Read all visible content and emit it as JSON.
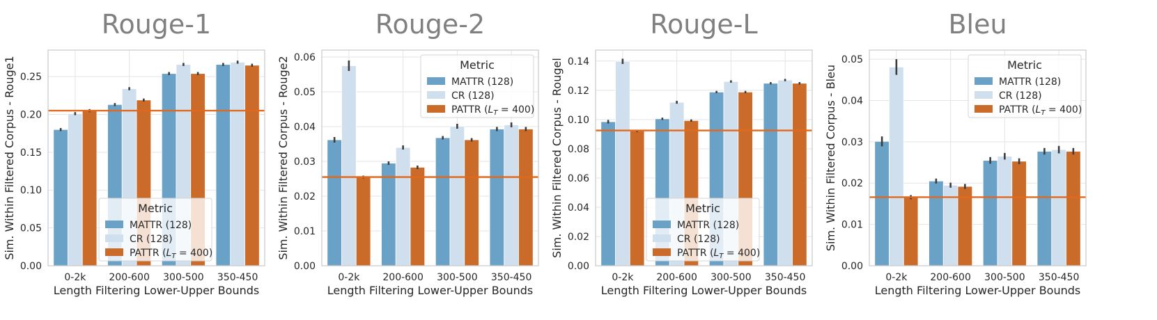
{
  "chart_data": [
    {
      "type": "bar",
      "title": "Rouge-1",
      "xlabel": "Length Filtering Lower-Upper Bounds",
      "ylabel": "Sim. Within Filtered Corpus - Rouge1",
      "categories": [
        "0-2k",
        "200-600",
        "300-500",
        "350-450"
      ],
      "ylim": [
        0,
        0.285
      ],
      "yticks": [
        "0.00",
        "0.05",
        "0.10",
        "0.15",
        "0.20",
        "0.25"
      ],
      "ytick_values": [
        0,
        0.05,
        0.1,
        0.15,
        0.2,
        0.25
      ],
      "hline": 0.205,
      "legend_position": "lower-center",
      "series": [
        {
          "name": "MATTR (128)",
          "values": [
            0.18,
            0.213,
            0.254,
            0.266
          ],
          "errors": [
            0.002,
            0.002,
            0.002,
            0.002
          ]
        },
        {
          "name": "CR (128)",
          "values": [
            0.201,
            0.234,
            0.266,
            0.269
          ],
          "errors": [
            0.002,
            0.002,
            0.002,
            0.002
          ]
        },
        {
          "name": "PATTR (L_T = 400)",
          "values": [
            0.205,
            0.219,
            0.254,
            0.265
          ],
          "errors": [
            0.002,
            0.002,
            0.002,
            0.002
          ]
        }
      ]
    },
    {
      "type": "bar",
      "title": "Rouge-2",
      "xlabel": "Length Filtering Lower-Upper Bounds",
      "ylabel": "Sim. Within Filtered Corpus - Rouge2",
      "categories": [
        "0-2k",
        "200-600",
        "300-500",
        "350-450"
      ],
      "ylim": [
        0,
        0.062
      ],
      "yticks": [
        "0.00",
        "0.01",
        "0.02",
        "0.03",
        "0.04",
        "0.05",
        "0.06"
      ],
      "ytick_values": [
        0,
        0.01,
        0.02,
        0.03,
        0.04,
        0.05,
        0.06
      ],
      "hline": 0.0255,
      "legend_position": "top-right",
      "series": [
        {
          "name": "MATTR (128)",
          "values": [
            0.0362,
            0.0295,
            0.0368,
            0.0393
          ],
          "errors": [
            0.0008,
            0.0005,
            0.0005,
            0.0006
          ]
        },
        {
          "name": "CR (128)",
          "values": [
            0.0575,
            0.034,
            0.0401,
            0.0405
          ],
          "errors": [
            0.0015,
            0.0006,
            0.0007,
            0.0007
          ]
        },
        {
          "name": "PATTR (L_T = 400)",
          "values": [
            0.0255,
            0.0283,
            0.0362,
            0.0393
          ],
          "errors": [
            0.0004,
            0.0005,
            0.0005,
            0.0006
          ]
        }
      ]
    },
    {
      "type": "bar",
      "title": "Rouge-L",
      "xlabel": "Length Filtering Lower-Upper Bounds",
      "ylabel": "Sim. Within Filtered Corpus - Rougel",
      "categories": [
        "0-2k",
        "200-600",
        "300-500",
        "350-450"
      ],
      "ylim": [
        0,
        0.1475
      ],
      "yticks": [
        "0.00",
        "0.02",
        "0.04",
        "0.06",
        "0.08",
        "0.10",
        "0.12",
        "0.14"
      ],
      "ytick_values": [
        0,
        0.02,
        0.04,
        0.06,
        0.08,
        0.1,
        0.12,
        0.14
      ],
      "hline": 0.0925,
      "legend_position": "lower-center",
      "series": [
        {
          "name": "MATTR (128)",
          "values": [
            0.0985,
            0.1005,
            0.1188,
            0.1248
          ],
          "errors": [
            0.0012,
            0.0008,
            0.0008,
            0.0008
          ]
        },
        {
          "name": "CR (128)",
          "values": [
            0.1398,
            0.1118,
            0.126,
            0.127
          ],
          "errors": [
            0.0018,
            0.001,
            0.0008,
            0.0008
          ]
        },
        {
          "name": "PATTR (L_T = 400)",
          "values": [
            0.0922,
            0.0993,
            0.1188,
            0.1248
          ],
          "errors": [
            0.0008,
            0.0008,
            0.0008,
            0.0008
          ]
        }
      ]
    },
    {
      "type": "bar",
      "title": "Bleu",
      "xlabel": "Length Filtering Lower-Upper Bounds",
      "ylabel": "Sim. Within Filtered Corpus - Bleu",
      "categories": [
        "0-2k",
        "200-600",
        "300-500",
        "350-450"
      ],
      "ylim": [
        0,
        0.0522
      ],
      "yticks": [
        "0.00",
        "0.01",
        "0.02",
        "0.03",
        "0.04",
        "0.05"
      ],
      "ytick_values": [
        0,
        0.01,
        0.02,
        0.03,
        0.04,
        0.05
      ],
      "hline": 0.0166,
      "legend_position": "top-right",
      "series": [
        {
          "name": "MATTR (128)",
          "values": [
            0.0301,
            0.0205,
            0.0255,
            0.0277
          ],
          "errors": [
            0.0012,
            0.0006,
            0.0008,
            0.0008
          ]
        },
        {
          "name": "CR (128)",
          "values": [
            0.0481,
            0.0195,
            0.0265,
            0.0281
          ],
          "errors": [
            0.0019,
            0.0006,
            0.0008,
            0.0009
          ]
        },
        {
          "name": "PATTR (L_T = 400)",
          "values": [
            0.0166,
            0.0192,
            0.0253,
            0.0277
          ],
          "errors": [
            0.0005,
            0.0006,
            0.0007,
            0.0008
          ]
        }
      ]
    }
  ],
  "legend": {
    "title": "Metric",
    "labels": [
      "MATTR (128)",
      "CR (128)",
      "PATTR (LT = 400)"
    ]
  },
  "colors": {
    "MATTR": "#6aa1c7",
    "CR": "#cfdfee",
    "PATTR": "#ca6b2a",
    "hline": "#e0691d",
    "grid": "#e3e3e3",
    "frame": "#cccccc",
    "error_bar": "#3c3c3c"
  }
}
